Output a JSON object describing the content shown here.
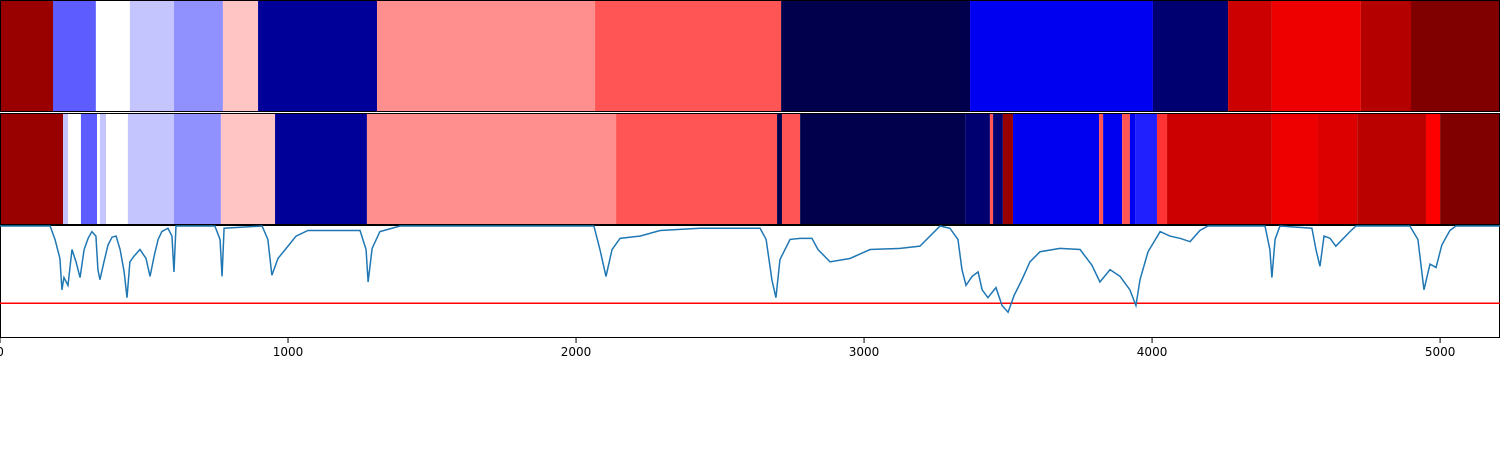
{
  "chart_data": {
    "type": "segmentation",
    "xlim": [
      0,
      5208
    ],
    "xticks": [
      0,
      1000,
      2000,
      3000,
      4000,
      5000
    ],
    "rows": [
      {
        "segments": [
          {
            "start": 0,
            "end": 184,
            "color": "#990000"
          },
          {
            "start": 184,
            "end": 333,
            "color": "#5c5cff"
          },
          {
            "start": 333,
            "end": 451,
            "color": "#ffffff"
          },
          {
            "start": 451,
            "end": 604,
            "color": "#c4c4ff"
          },
          {
            "start": 604,
            "end": 774,
            "color": "#9090ff"
          },
          {
            "start": 774,
            "end": 896,
            "color": "#ffc4c4"
          },
          {
            "start": 896,
            "end": 1309,
            "color": "#000099"
          },
          {
            "start": 1309,
            "end": 2066,
            "color": "#ff8e8e"
          },
          {
            "start": 2066,
            "end": 2712,
            "color": "#ff5555"
          },
          {
            "start": 2712,
            "end": 3368,
            "color": "#00004c"
          },
          {
            "start": 3368,
            "end": 4003,
            "color": "#0000f0"
          },
          {
            "start": 4003,
            "end": 4264,
            "color": "#000070"
          },
          {
            "start": 4264,
            "end": 4416,
            "color": "#cc0000"
          },
          {
            "start": 4416,
            "end": 4725,
            "color": "#ee0000"
          },
          {
            "start": 4725,
            "end": 4899,
            "color": "#b50000"
          },
          {
            "start": 4899,
            "end": 5208,
            "color": "#800000"
          }
        ]
      },
      {
        "segments": [
          {
            "start": 0,
            "end": 219,
            "color": "#990000"
          },
          {
            "start": 219,
            "end": 236,
            "color": "#c4c4ff"
          },
          {
            "start": 236,
            "end": 281,
            "color": "#ffffff"
          },
          {
            "start": 281,
            "end": 337,
            "color": "#5c5cff"
          },
          {
            "start": 337,
            "end": 347,
            "color": "#ffffff"
          },
          {
            "start": 347,
            "end": 368,
            "color": "#c4c4ff"
          },
          {
            "start": 368,
            "end": 444,
            "color": "#ffffff"
          },
          {
            "start": 444,
            "end": 604,
            "color": "#c4c4ff"
          },
          {
            "start": 604,
            "end": 767,
            "color": "#9090ff"
          },
          {
            "start": 767,
            "end": 955,
            "color": "#ffc4c4"
          },
          {
            "start": 955,
            "end": 1274,
            "color": "#000099"
          },
          {
            "start": 1274,
            "end": 2139,
            "color": "#ff8e8e"
          },
          {
            "start": 2139,
            "end": 2698,
            "color": "#ff5555"
          },
          {
            "start": 2698,
            "end": 2715,
            "color": "#00004c"
          },
          {
            "start": 2715,
            "end": 2778,
            "color": "#ff5555"
          },
          {
            "start": 2778,
            "end": 3351,
            "color": "#00004c"
          },
          {
            "start": 3351,
            "end": 3437,
            "color": "#000070"
          },
          {
            "start": 3437,
            "end": 3448,
            "color": "#ff5555"
          },
          {
            "start": 3448,
            "end": 3482,
            "color": "#000070"
          },
          {
            "start": 3482,
            "end": 3517,
            "color": "#990000"
          },
          {
            "start": 3517,
            "end": 3816,
            "color": "#0000f0"
          },
          {
            "start": 3816,
            "end": 3830,
            "color": "#ff5555"
          },
          {
            "start": 3830,
            "end": 3896,
            "color": "#0000f0"
          },
          {
            "start": 3896,
            "end": 3923,
            "color": "#ff5555"
          },
          {
            "start": 3923,
            "end": 3941,
            "color": "#0000f0"
          },
          {
            "start": 3941,
            "end": 4017,
            "color": "#2020ff"
          },
          {
            "start": 4017,
            "end": 4052,
            "color": "#ff3333"
          },
          {
            "start": 4052,
            "end": 4416,
            "color": "#cc0000"
          },
          {
            "start": 4416,
            "end": 4576,
            "color": "#ee0000"
          },
          {
            "start": 4576,
            "end": 4712,
            "color": "#dd0000"
          },
          {
            "start": 4712,
            "end": 4951,
            "color": "#bb0000"
          },
          {
            "start": 4951,
            "end": 5000,
            "color": "#ff0000"
          },
          {
            "start": 5000,
            "end": 5208,
            "color": "#800000"
          }
        ]
      }
    ],
    "line": {
      "color": "#1f77b4",
      "ylim": [
        0,
        1
      ],
      "x": [
        0,
        174,
        191,
        208,
        215,
        222,
        236,
        250,
        264,
        278,
        292,
        306,
        319,
        333,
        340,
        347,
        361,
        375,
        389,
        403,
        417,
        431,
        441,
        451,
        465,
        486,
        507,
        521,
        535,
        549,
        562,
        583,
        597,
        604,
        611,
        746,
        764,
        771,
        778,
        910,
        930,
        944,
        965,
        1000,
        1028,
        1069,
        1250,
        1271,
        1278,
        1292,
        1319,
        1389,
        2062,
        2083,
        2104,
        2125,
        2153,
        2222,
        2292,
        2430,
        2639,
        2660,
        2680,
        2694,
        2708,
        2743,
        2778,
        2819,
        2840,
        2882,
        2951,
        3021,
        3125,
        3194,
        3264,
        3298,
        3326,
        3340,
        3354,
        3375,
        3396,
        3410,
        3430,
        3458,
        3479,
        3500,
        3521,
        3548,
        3576,
        3611,
        3680,
        3750,
        3791,
        3819,
        3854,
        3889,
        3923,
        3944,
        3958,
        3986,
        4028,
        4062,
        4097,
        4132,
        4166,
        4194,
        4392,
        4409,
        4416,
        4427,
        4444,
        4555,
        4569,
        4583,
        4597,
        4618,
        4638,
        4687,
        4708,
        4895,
        4923,
        4944,
        4965,
        4986,
        5006,
        5034,
        5055,
        5208
      ],
      "values": [
        1.0,
        1.0,
        0.88,
        0.71,
        0.43,
        0.54,
        0.47,
        0.79,
        0.68,
        0.54,
        0.79,
        0.89,
        0.95,
        0.91,
        0.61,
        0.52,
        0.68,
        0.83,
        0.9,
        0.91,
        0.79,
        0.59,
        0.36,
        0.68,
        0.73,
        0.79,
        0.71,
        0.55,
        0.73,
        0.88,
        0.95,
        0.98,
        0.91,
        0.59,
        1.0,
        1.0,
        0.88,
        0.55,
        0.98,
        1.0,
        0.88,
        0.56,
        0.71,
        0.82,
        0.91,
        0.96,
        0.96,
        0.79,
        0.5,
        0.8,
        0.95,
        1.0,
        1.0,
        0.79,
        0.55,
        0.79,
        0.89,
        0.91,
        0.96,
        0.98,
        0.98,
        0.88,
        0.52,
        0.36,
        0.7,
        0.88,
        0.89,
        0.89,
        0.79,
        0.68,
        0.71,
        0.79,
        0.8,
        0.82,
        1.0,
        0.98,
        0.88,
        0.61,
        0.47,
        0.55,
        0.59,
        0.43,
        0.36,
        0.45,
        0.29,
        0.23,
        0.38,
        0.52,
        0.68,
        0.77,
        0.8,
        0.79,
        0.65,
        0.5,
        0.61,
        0.55,
        0.43,
        0.29,
        0.52,
        0.77,
        0.95,
        0.91,
        0.89,
        0.86,
        0.96,
        1.0,
        1.0,
        0.79,
        0.54,
        0.88,
        1.0,
        0.98,
        0.79,
        0.64,
        0.91,
        0.89,
        0.82,
        0.95,
        1.0,
        1.0,
        0.88,
        0.43,
        0.66,
        0.63,
        0.83,
        0.96,
        1.0,
        1.0
      ],
      "threshold": 0.31,
      "threshold_color": "#ff0000"
    }
  }
}
